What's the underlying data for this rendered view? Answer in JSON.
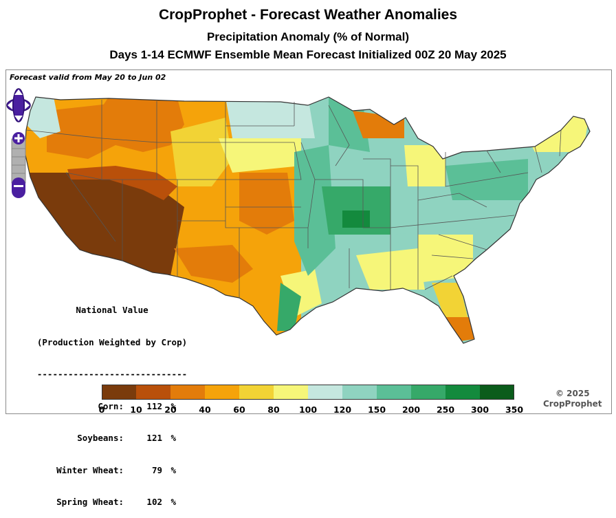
{
  "header": {
    "title": "CropProphet - Forecast Weather Anomalies",
    "subtitle": "Precipitation Anomaly (% of Normal)",
    "forecast_line": "Days 1-14 ECMWF Ensemble Mean Forecast Initialized 00Z 20 May 2025"
  },
  "map": {
    "valid_text": "Forecast valid from May 20 to Jun 02",
    "controls": {
      "pan_icon": "pan-arrows-icon",
      "zoom_in_icon": "plus-icon",
      "zoom_out_icon": "minus-icon"
    }
  },
  "national": {
    "heading": "National Value",
    "subheading": "(Production Weighted by Crop)",
    "divider": "-----------------------------",
    "unit": "%",
    "rows": [
      {
        "label": "Corn:",
        "value": "112"
      },
      {
        "label": "Soybeans:",
        "value": "121"
      },
      {
        "label": "Winter Wheat:",
        "value": "79"
      },
      {
        "label": "Spring Wheat:",
        "value": "102"
      }
    ]
  },
  "legend": {
    "ticks": [
      "0",
      "10",
      "20",
      "40",
      "60",
      "80",
      "100",
      "120",
      "150",
      "200",
      "250",
      "300",
      "350"
    ],
    "colors": [
      "#7a3b0c",
      "#b9500a",
      "#e37c0a",
      "#f5a30a",
      "#f2d335",
      "#f6f679",
      "#c5e7df",
      "#8fd3c0",
      "#5bbf97",
      "#36a969",
      "#138a3d",
      "#0b5c1b"
    ]
  },
  "copyright": {
    "year": "© 2025",
    "brand": "CropProphet"
  }
}
